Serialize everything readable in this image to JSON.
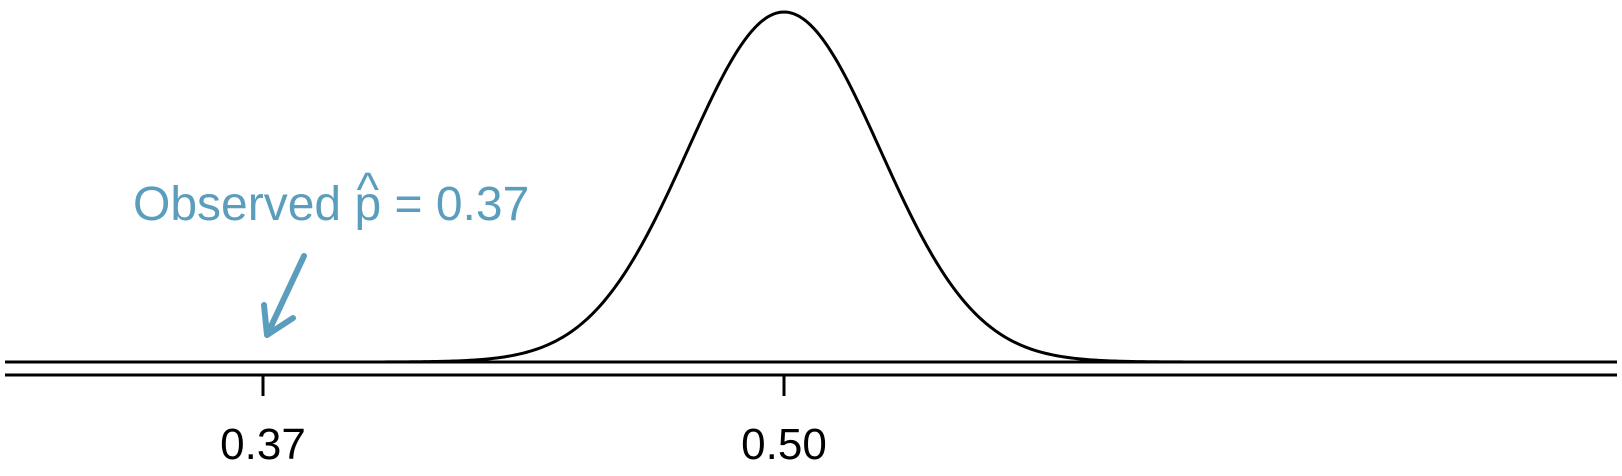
{
  "colors": {
    "annotation": "#5b9dbd",
    "line": "#000000"
  },
  "chart_data": {
    "type": "line",
    "title": "",
    "xlabel": "",
    "ylabel": "",
    "xlim": [
      0.25,
      0.7
    ],
    "distribution": {
      "kind": "normal",
      "mean": 0.5,
      "sd": 0.024
    },
    "ticks": [
      {
        "value": 0.37,
        "label": "0.37"
      },
      {
        "value": 0.5,
        "label": "0.50"
      }
    ],
    "annotation": {
      "prefix": "Observed ",
      "symbol": "p",
      "hat": "^",
      "suffix": " = 0.37",
      "points_to": 0.37
    },
    "grid": false,
    "legend": "none"
  }
}
